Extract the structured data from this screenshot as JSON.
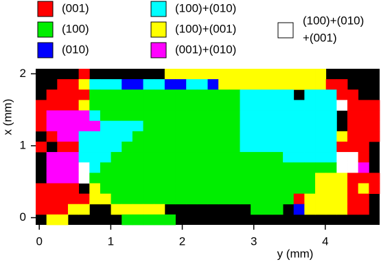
{
  "chart_data": {
    "type": "heatmap",
    "xlabel": "y (mm)",
    "ylabel": "x (mm)",
    "xlim": [
      -0.05,
      4.76
    ],
    "ylim": [
      -0.1,
      2.07
    ],
    "xticks": [
      0,
      1,
      2,
      3,
      4
    ],
    "yticks": [
      0,
      1,
      2
    ],
    "categories": [
      {
        "name": "(001)",
        "color": "#ff0000"
      },
      {
        "name": "(100)",
        "color": "#00ee00"
      },
      {
        "name": "(010)",
        "color": "#0000ff"
      },
      {
        "name": "(100)+(010)",
        "color": "#00ffff"
      },
      {
        "name": "(100)+(001)",
        "color": "#ffff00"
      },
      {
        "name": "(001)+(010)",
        "color": "#ff00ff"
      },
      {
        "name": [
          "(100)+(010)",
          "+(001)"
        ],
        "color": "#ffffff"
      }
    ],
    "grid": [
      [
        null,
        null,
        null,
        null,
        0,
        null,
        null,
        null,
        null,
        null,
        null,
        null,
        4,
        4,
        4,
        4,
        4,
        4,
        4,
        4,
        4,
        4,
        4,
        4,
        4,
        4,
        4,
        null,
        null,
        null,
        null,
        null
      ],
      [
        null,
        null,
        0,
        0,
        4,
        3,
        3,
        3,
        2,
        2,
        3,
        3,
        2,
        2,
        3,
        3,
        2,
        4,
        4,
        4,
        4,
        4,
        4,
        4,
        4,
        4,
        4,
        0,
        0,
        null,
        null,
        null
      ],
      [
        null,
        0,
        0,
        0,
        0,
        1,
        1,
        1,
        1,
        1,
        1,
        1,
        1,
        1,
        1,
        1,
        1,
        1,
        1,
        3,
        3,
        3,
        3,
        3,
        null,
        3,
        3,
        3,
        0,
        0,
        null,
        null
      ],
      [
        0,
        0,
        0,
        0,
        4,
        1,
        1,
        1,
        1,
        1,
        1,
        1,
        1,
        1,
        1,
        1,
        1,
        1,
        1,
        3,
        3,
        3,
        3,
        3,
        3,
        3,
        3,
        3,
        6,
        0,
        0,
        0
      ],
      [
        0,
        5,
        5,
        5,
        5,
        3,
        1,
        1,
        1,
        1,
        1,
        1,
        1,
        1,
        1,
        1,
        1,
        1,
        1,
        3,
        3,
        3,
        3,
        3,
        3,
        3,
        3,
        3,
        null,
        0,
        0,
        0
      ],
      [
        0,
        5,
        5,
        5,
        5,
        5,
        3,
        3,
        3,
        3,
        1,
        1,
        1,
        1,
        1,
        1,
        1,
        1,
        1,
        3,
        3,
        3,
        3,
        3,
        3,
        3,
        3,
        3,
        null,
        0,
        0,
        0
      ],
      [
        null,
        0,
        5,
        5,
        3,
        3,
        3,
        3,
        3,
        1,
        1,
        1,
        1,
        1,
        1,
        1,
        1,
        1,
        1,
        3,
        3,
        3,
        3,
        3,
        3,
        3,
        3,
        3,
        4,
        0,
        0,
        0
      ],
      [
        0,
        null,
        0,
        0,
        3,
        3,
        3,
        3,
        1,
        1,
        1,
        1,
        1,
        1,
        1,
        1,
        1,
        1,
        1,
        3,
        3,
        3,
        3,
        3,
        3,
        3,
        3,
        3,
        0,
        0,
        0,
        null
      ],
      [
        null,
        5,
        5,
        5,
        3,
        3,
        3,
        1,
        1,
        1,
        1,
        1,
        1,
        1,
        1,
        1,
        1,
        1,
        1,
        1,
        1,
        1,
        1,
        3,
        3,
        3,
        3,
        3,
        6,
        6,
        0,
        null
      ],
      [
        null,
        5,
        5,
        5,
        6,
        3,
        1,
        1,
        1,
        1,
        1,
        1,
        1,
        1,
        1,
        1,
        1,
        1,
        1,
        1,
        1,
        1,
        1,
        1,
        1,
        1,
        1,
        1,
        6,
        6,
        5,
        null
      ],
      [
        null,
        5,
        5,
        5,
        6,
        1,
        1,
        1,
        1,
        1,
        1,
        1,
        1,
        1,
        1,
        1,
        1,
        1,
        1,
        1,
        1,
        1,
        1,
        1,
        1,
        1,
        4,
        4,
        4,
        0,
        0,
        0
      ],
      [
        0,
        0,
        0,
        0,
        null,
        4,
        1,
        1,
        1,
        1,
        1,
        1,
        1,
        1,
        1,
        1,
        1,
        1,
        1,
        1,
        1,
        1,
        1,
        1,
        1,
        1,
        4,
        4,
        4,
        0,
        4,
        0
      ],
      [
        0,
        0,
        0,
        0,
        0,
        4,
        4,
        1,
        1,
        1,
        1,
        1,
        1,
        1,
        1,
        1,
        1,
        1,
        1,
        1,
        1,
        1,
        1,
        1,
        0,
        4,
        4,
        4,
        4,
        0,
        0,
        null
      ],
      [
        0,
        0,
        0,
        4,
        4,
        null,
        null,
        4,
        4,
        4,
        4,
        4,
        null,
        null,
        null,
        null,
        null,
        null,
        null,
        null,
        1,
        1,
        1,
        null,
        2,
        4,
        4,
        4,
        4,
        0,
        0,
        null
      ],
      [
        null,
        4,
        4,
        null,
        null,
        null,
        null,
        null,
        1,
        1,
        1,
        1,
        1,
        null,
        null,
        null,
        null,
        null,
        null,
        null,
        null,
        null,
        null,
        null,
        null,
        null,
        null,
        null,
        null,
        null,
        null,
        null
      ]
    ]
  }
}
